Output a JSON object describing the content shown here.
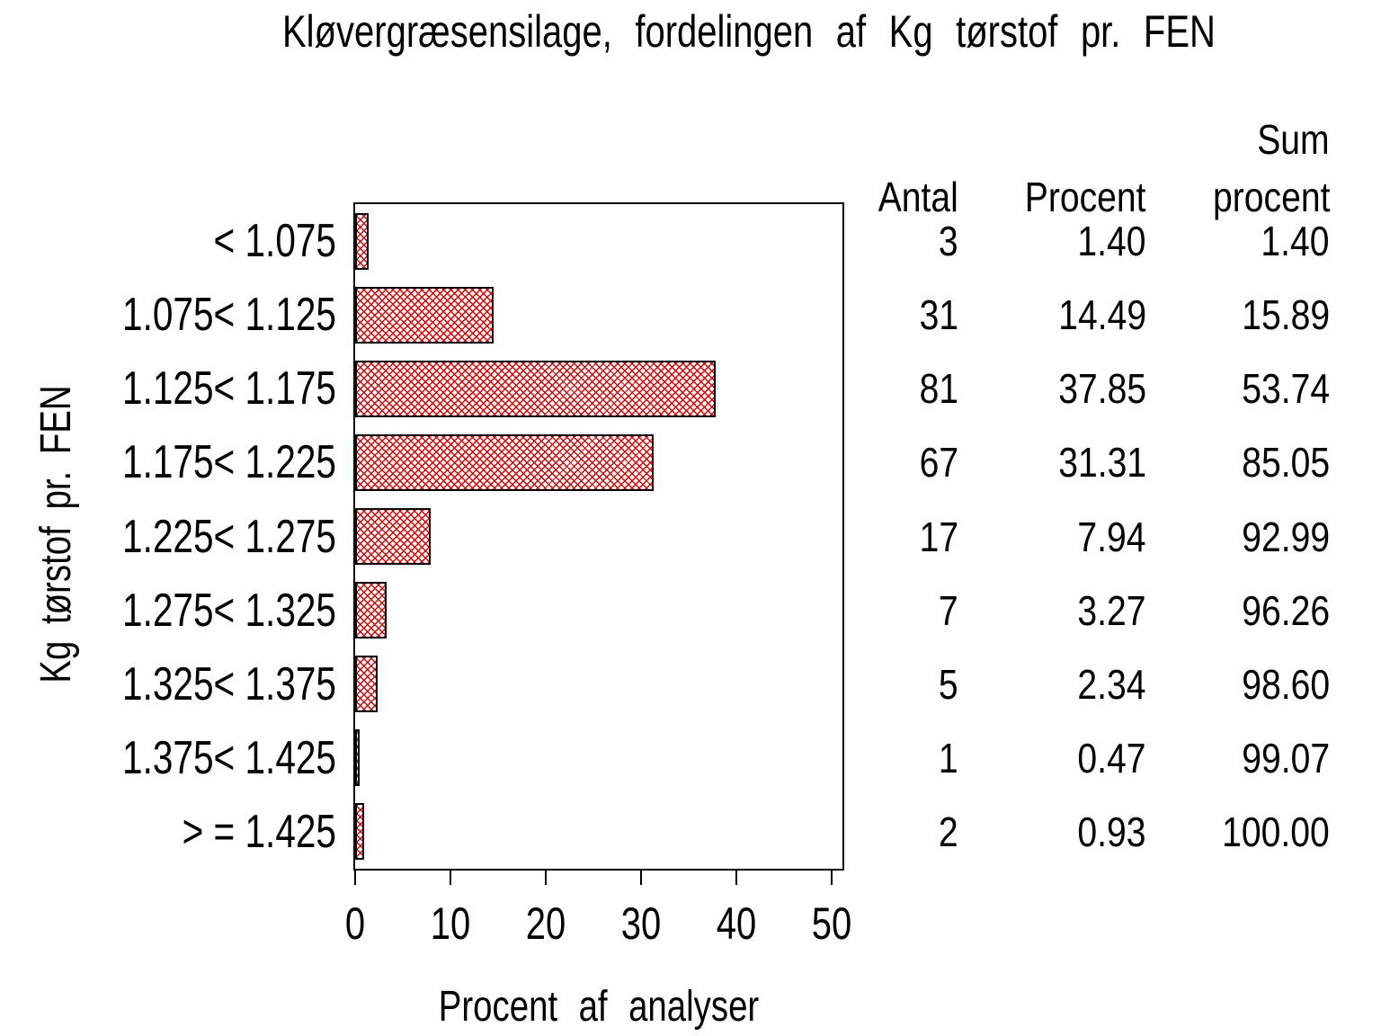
{
  "title": "Kløvergræsensilage, fordelingen af Kg tørstof pr. FEN",
  "chart_data": {
    "type": "bar",
    "orientation": "horizontal",
    "title": "Kløvergræsensilage, fordelingen af Kg tørstof pr. FEN",
    "xlabel": "Procent af analyser",
    "ylabel": "Kg tørstof pr. FEN",
    "categories": [
      "< 1.075",
      "1.075< 1.125",
      "1.125< 1.175",
      "1.175< 1.225",
      "1.225< 1.275",
      "1.275< 1.325",
      "1.325< 1.375",
      "1.375< 1.425",
      "> = 1.425"
    ],
    "values": [
      1.4,
      14.49,
      37.85,
      31.31,
      7.94,
      3.27,
      2.34,
      0.47,
      0.93
    ],
    "xticks": [
      0,
      10,
      20,
      30,
      40,
      50
    ],
    "xlim": [
      0,
      51.5
    ],
    "grid": false,
    "legend": "none",
    "bar_style": {
      "fill_pattern": "diagonal-crosshatch",
      "hatch_color": "#e00000",
      "border_color": "#000000",
      "background": "#ffffff"
    }
  },
  "table": {
    "headers": {
      "antal": "Antal",
      "procent": "Procent",
      "sum_line1": "Sum",
      "sum_line2": "procent"
    },
    "rows": [
      {
        "antal": "3",
        "procent": "1.40",
        "sum": "1.40"
      },
      {
        "antal": "31",
        "procent": "14.49",
        "sum": "15.89"
      },
      {
        "antal": "81",
        "procent": "37.85",
        "sum": "53.74"
      },
      {
        "antal": "67",
        "procent": "31.31",
        "sum": "85.05"
      },
      {
        "antal": "17",
        "procent": "7.94",
        "sum": "92.99"
      },
      {
        "antal": "7",
        "procent": "3.27",
        "sum": "96.26"
      },
      {
        "antal": "5",
        "procent": "2.34",
        "sum": "98.60"
      },
      {
        "antal": "1",
        "procent": "0.47",
        "sum": "99.07"
      },
      {
        "antal": "2",
        "procent": "0.93",
        "sum": "100.00"
      }
    ]
  }
}
